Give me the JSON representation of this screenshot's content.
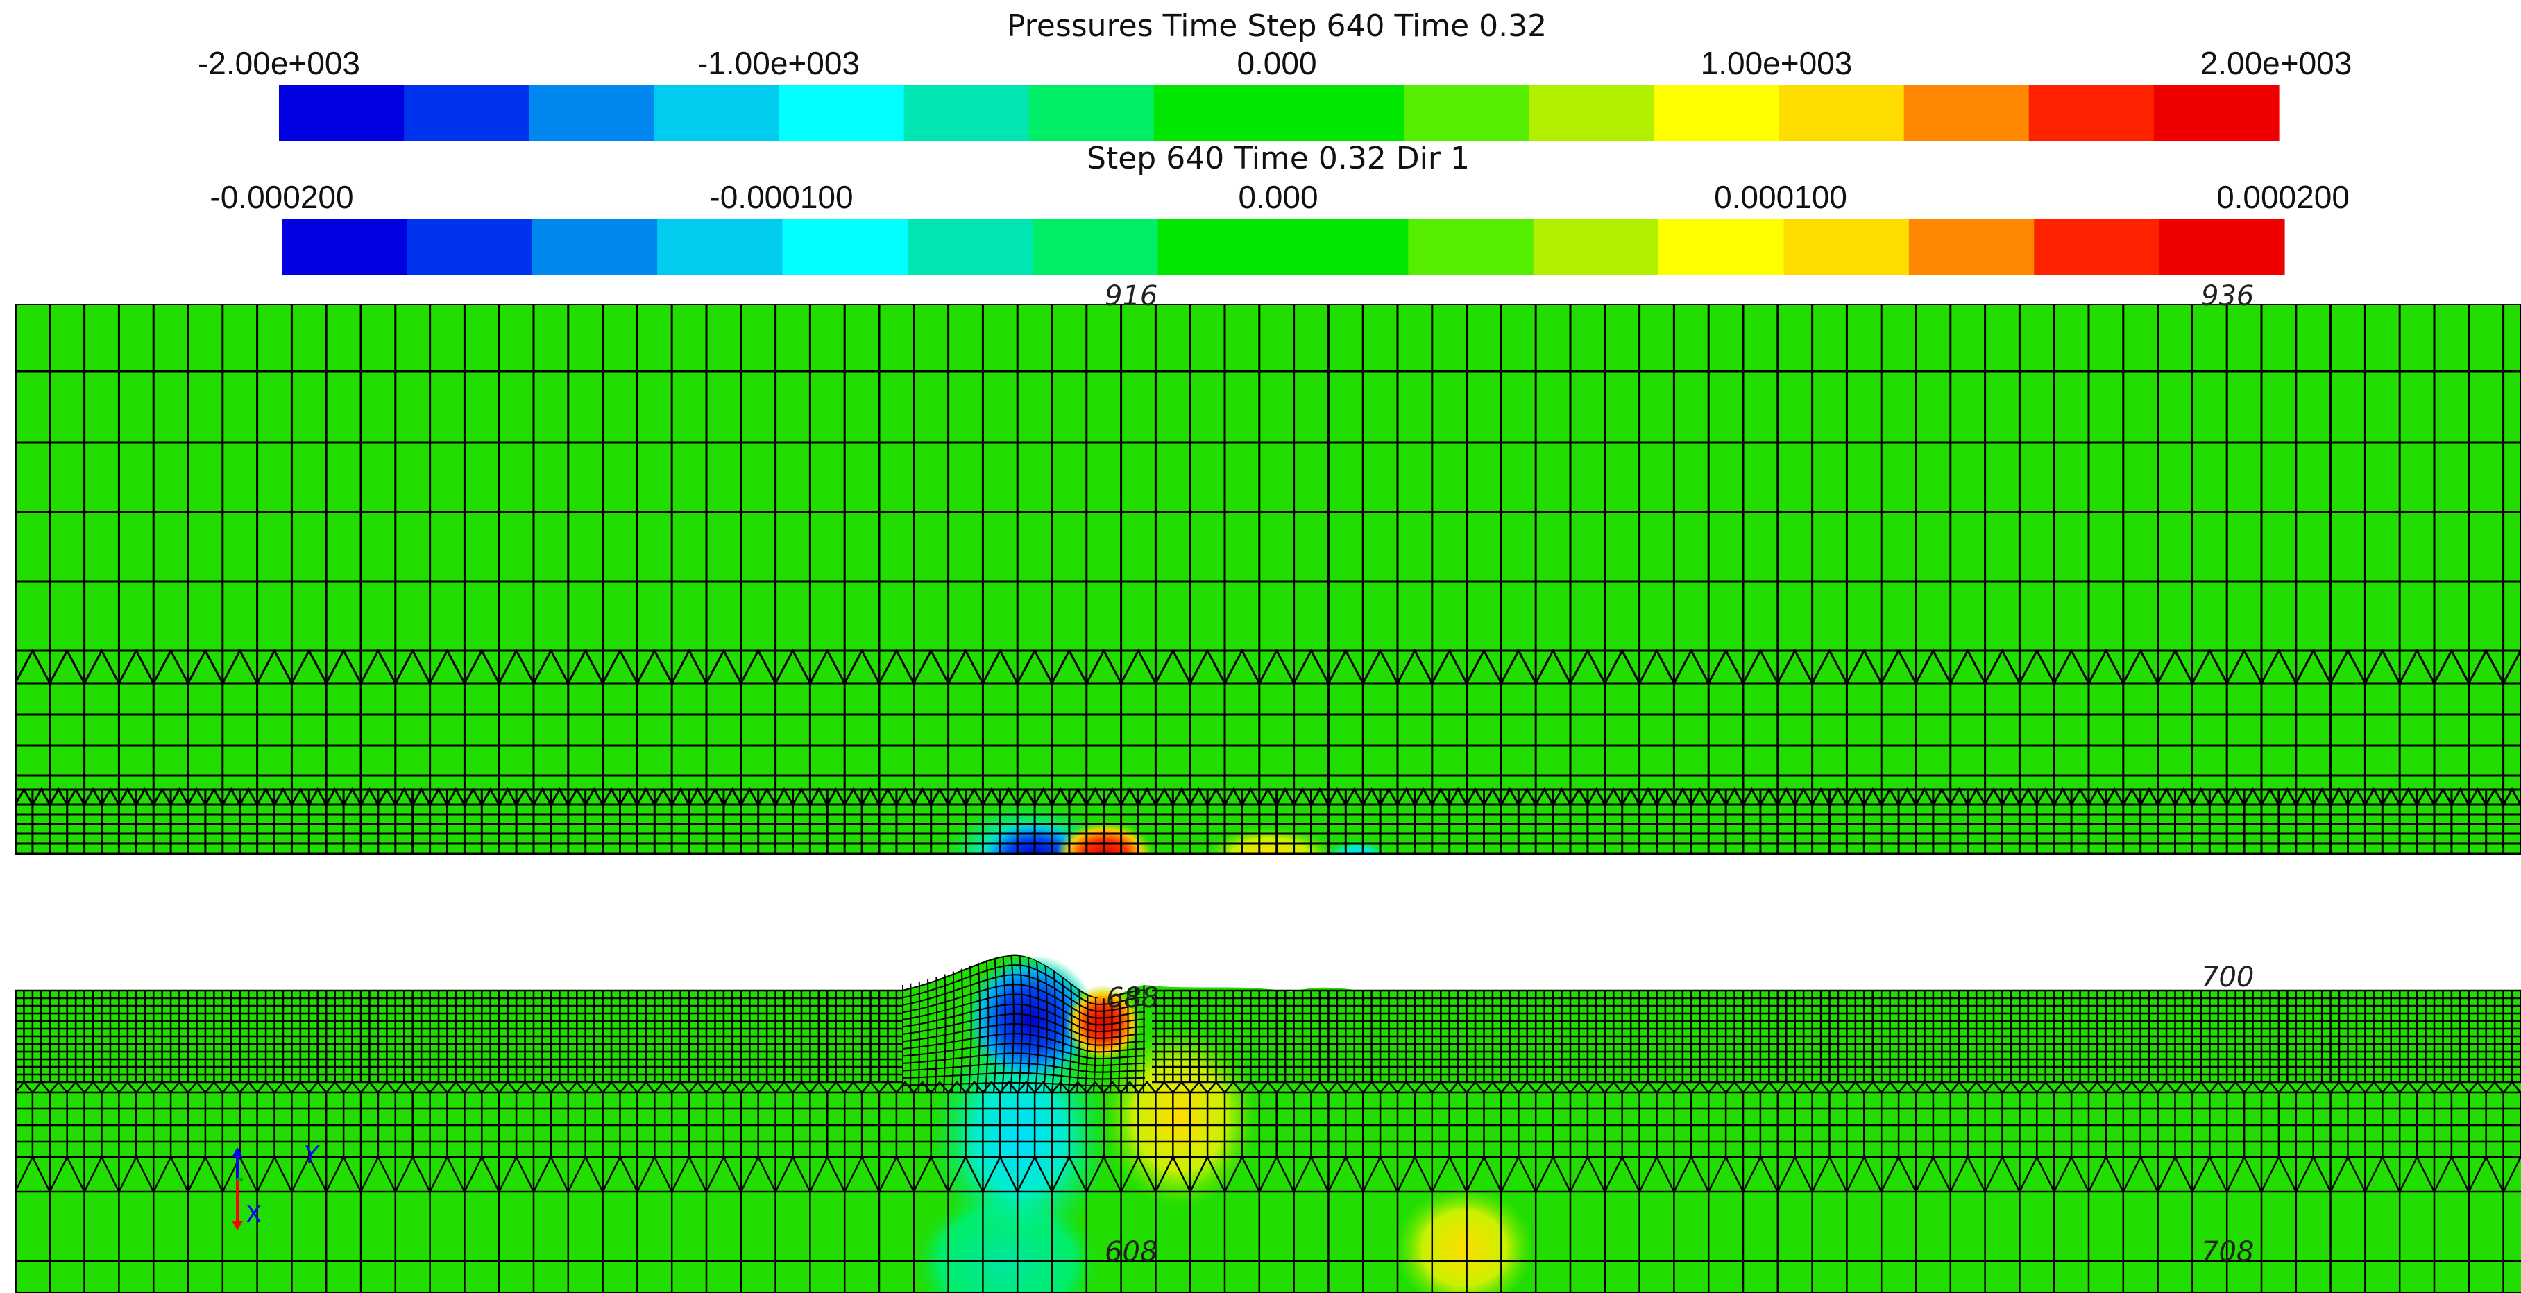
{
  "colors": {
    "bins": [
      "#0000e0",
      "#0033ee",
      "#0088f0",
      "#00ccf0",
      "#00ffff",
      "#00e6b2",
      "#00ee66",
      "#00e600",
      "#00e600",
      "#55ee00",
      "#b2f000",
      "#ffff00",
      "#ffdd00",
      "#ff8800",
      "#ff2200",
      "#ee0000"
    ],
    "field": "#22dd00",
    "mesh": "#000000"
  },
  "colorbars": [
    {
      "title": "Pressures Time Step 640 Time 0.32",
      "ticks": [
        "-2.00e+003",
        "-1.00e+003",
        "0.000",
        "1.00e+003",
        "2.00e+003"
      ]
    },
    {
      "title": "Step 640 Time 0.32 Dir 1",
      "ticks": [
        "-0.000200",
        "-0.000100",
        "0.000",
        "0.000100",
        "0.000200"
      ]
    }
  ],
  "top_view": {
    "node_labels": [
      "916",
      "936"
    ]
  },
  "bottom_view": {
    "node_labels": [
      "688",
      "700",
      "608",
      "708"
    ]
  },
  "triad": {
    "x_label": "X",
    "y_label": "Y"
  }
}
